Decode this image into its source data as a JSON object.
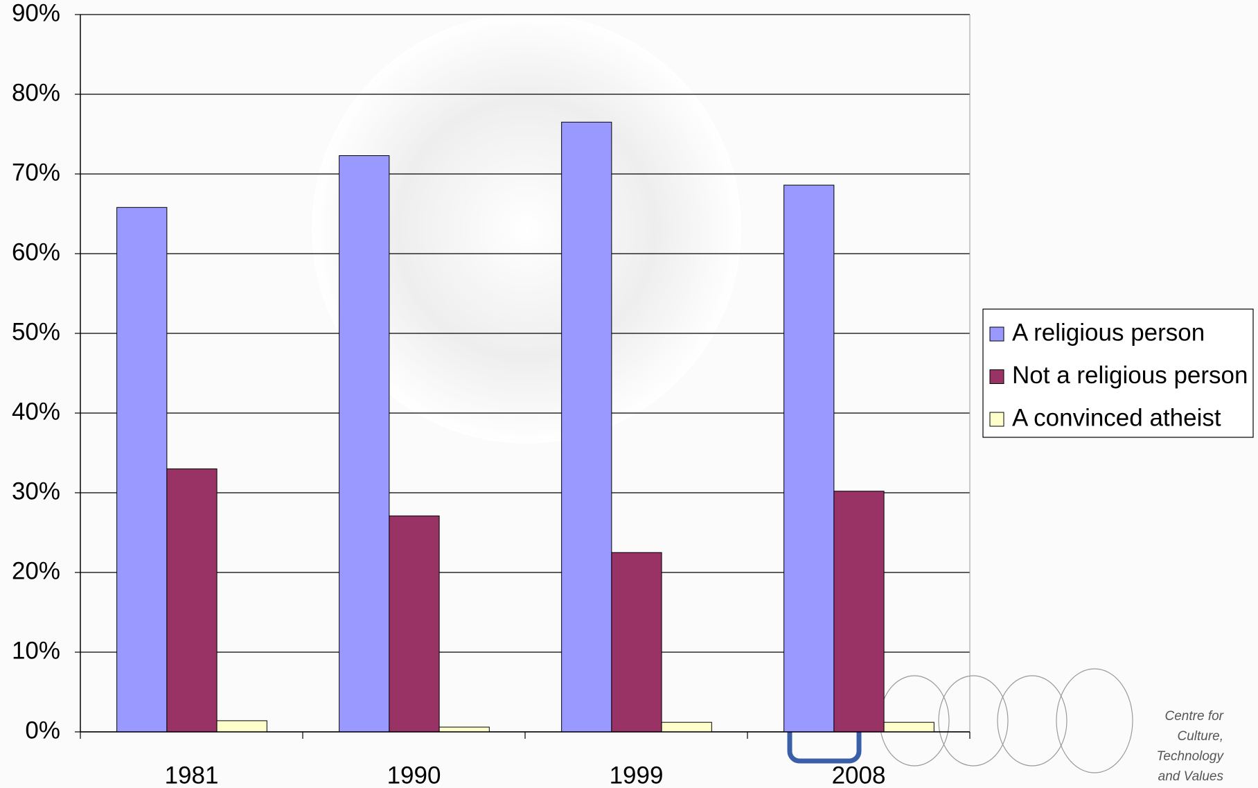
{
  "chart_data": {
    "type": "bar",
    "categories": [
      "1981",
      "1990",
      "1999",
      "2008"
    ],
    "series": [
      {
        "name": "A religious person",
        "color": "#9999ff",
        "values": [
          65.8,
          72.3,
          76.5,
          68.6
        ]
      },
      {
        "name": "Not a religious person",
        "color": "#993366",
        "values": [
          33.0,
          27.1,
          22.5,
          30.2
        ]
      },
      {
        "name": "A convinced atheist",
        "color": "#ffffcc",
        "values": [
          1.4,
          0.6,
          1.2,
          1.2
        ]
      }
    ],
    "ylim": [
      0,
      90
    ],
    "yticks": [
      {
        "value": 0,
        "label": "0%"
      },
      {
        "value": 10,
        "label": "10%"
      },
      {
        "value": 20,
        "label": "20%"
      },
      {
        "value": 30,
        "label": "30%"
      },
      {
        "value": 40,
        "label": "40%"
      },
      {
        "value": 50,
        "label": "50%"
      },
      {
        "value": 60,
        "label": "60%"
      },
      {
        "value": 70,
        "label": "70%"
      },
      {
        "value": 80,
        "label": "80%"
      },
      {
        "value": 90,
        "label": "90%"
      }
    ],
    "grid": true,
    "legend": "right"
  },
  "logo": {
    "lines": [
      "Centre for",
      "Culture,",
      "Technology",
      "and Values"
    ]
  }
}
